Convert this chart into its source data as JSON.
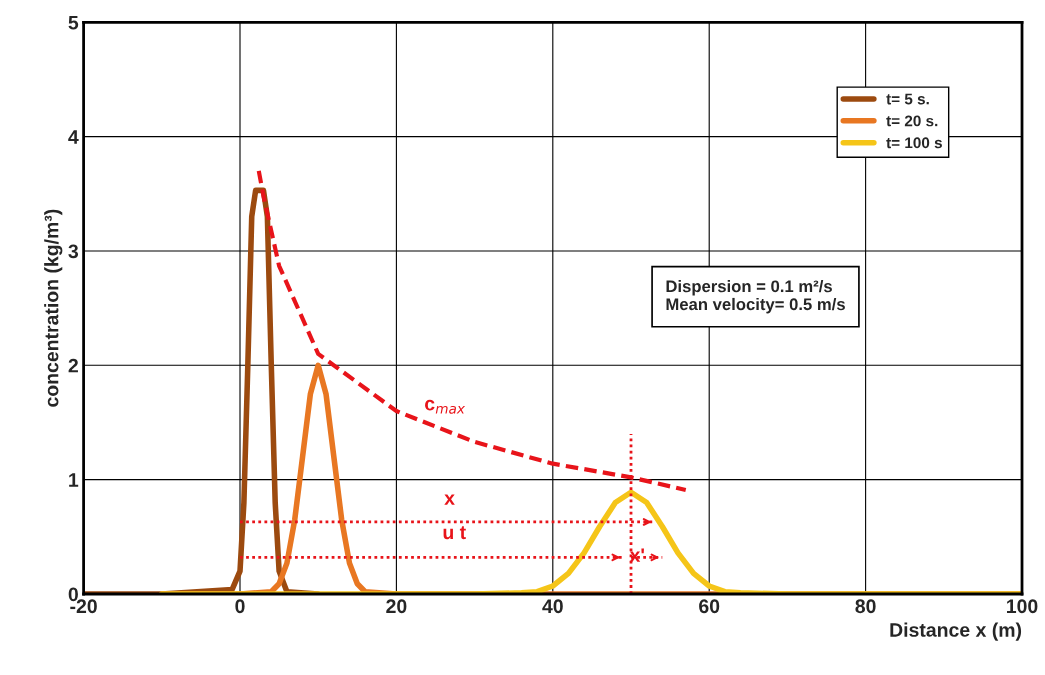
{
  "chart_data": {
    "type": "line",
    "xlabel": "Distance x (m)",
    "ylabel": "concentration (kg/m³)",
    "xlim": [
      -20,
      100
    ],
    "ylim": [
      0,
      5
    ],
    "xticks": [
      -20,
      0,
      20,
      40,
      60,
      80,
      100
    ],
    "yticks": [
      0,
      1,
      2,
      3,
      4,
      5
    ],
    "grid": true,
    "legend": "top right",
    "marker": "none",
    "series": [
      {
        "name": "t= 5 s.",
        "color": "#9c4a0f",
        "x": [
          -20,
          -10,
          -1,
          0,
          0.5,
          1,
          1.5,
          2,
          2.5,
          3,
          3.5,
          4,
          4.5,
          5,
          6,
          10
        ],
        "values": [
          0,
          0,
          0.04,
          0.2,
          0.8,
          2.0,
          3.3,
          3.53,
          3.53,
          3.53,
          3.3,
          2.0,
          0.8,
          0.2,
          0.02,
          0
        ]
      },
      {
        "name": "t= 20 s.",
        "color": "#e87722",
        "x": [
          -10,
          0,
          4,
          5,
          6,
          7,
          8,
          9,
          10,
          11,
          12,
          13,
          14,
          15,
          16,
          20,
          100
        ],
        "values": [
          0,
          0,
          0.02,
          0.09,
          0.27,
          0.65,
          1.2,
          1.75,
          2.0,
          1.75,
          1.2,
          0.65,
          0.27,
          0.09,
          0.02,
          0,
          0
        ]
      },
      {
        "name": "t= 100 s",
        "color": "#f5c518",
        "x": [
          -10,
          30,
          36,
          38,
          40,
          42,
          44,
          46,
          48,
          50,
          52,
          54,
          56,
          58,
          60,
          62,
          64,
          70,
          100
        ],
        "values": [
          0,
          0,
          0.01,
          0.02,
          0.07,
          0.18,
          0.36,
          0.59,
          0.8,
          0.89,
          0.8,
          0.59,
          0.36,
          0.18,
          0.07,
          0.02,
          0.01,
          0,
          0
        ]
      },
      {
        "color": "#e8141a",
        "line_style": "dashed",
        "x": [
          2.4,
          3,
          5,
          10,
          20,
          30,
          40,
          50,
          57
        ],
        "values": [
          3.7,
          3.48,
          2.87,
          2.1,
          1.6,
          1.33,
          1.14,
          1.02,
          0.91
        ]
      },
      {
        "color": "#e8141a",
        "line_style": "dotted",
        "x": [
          0,
          53
        ],
        "values": [
          0.63,
          0.63
        ]
      },
      {
        "color": "#e8141a",
        "line_style": "dotted",
        "x": [
          0,
          49
        ],
        "values": [
          0.32,
          0.32
        ]
      },
      {
        "color": "#e8141a",
        "line_style": "dotted",
        "x": [
          50,
          54
        ],
        "values": [
          0.32,
          0.32
        ]
      },
      {
        "color": "#e8141a",
        "line_style": "dotted",
        "x": [
          50,
          50
        ],
        "values": [
          0,
          1.4
        ]
      }
    ],
    "annotations": [
      "c$_{max}$",
      "x",
      "u t",
      "x'",
      "Dispersion = 0.1 m²/s\nMean velocity= 0.5 m/s"
    ]
  }
}
